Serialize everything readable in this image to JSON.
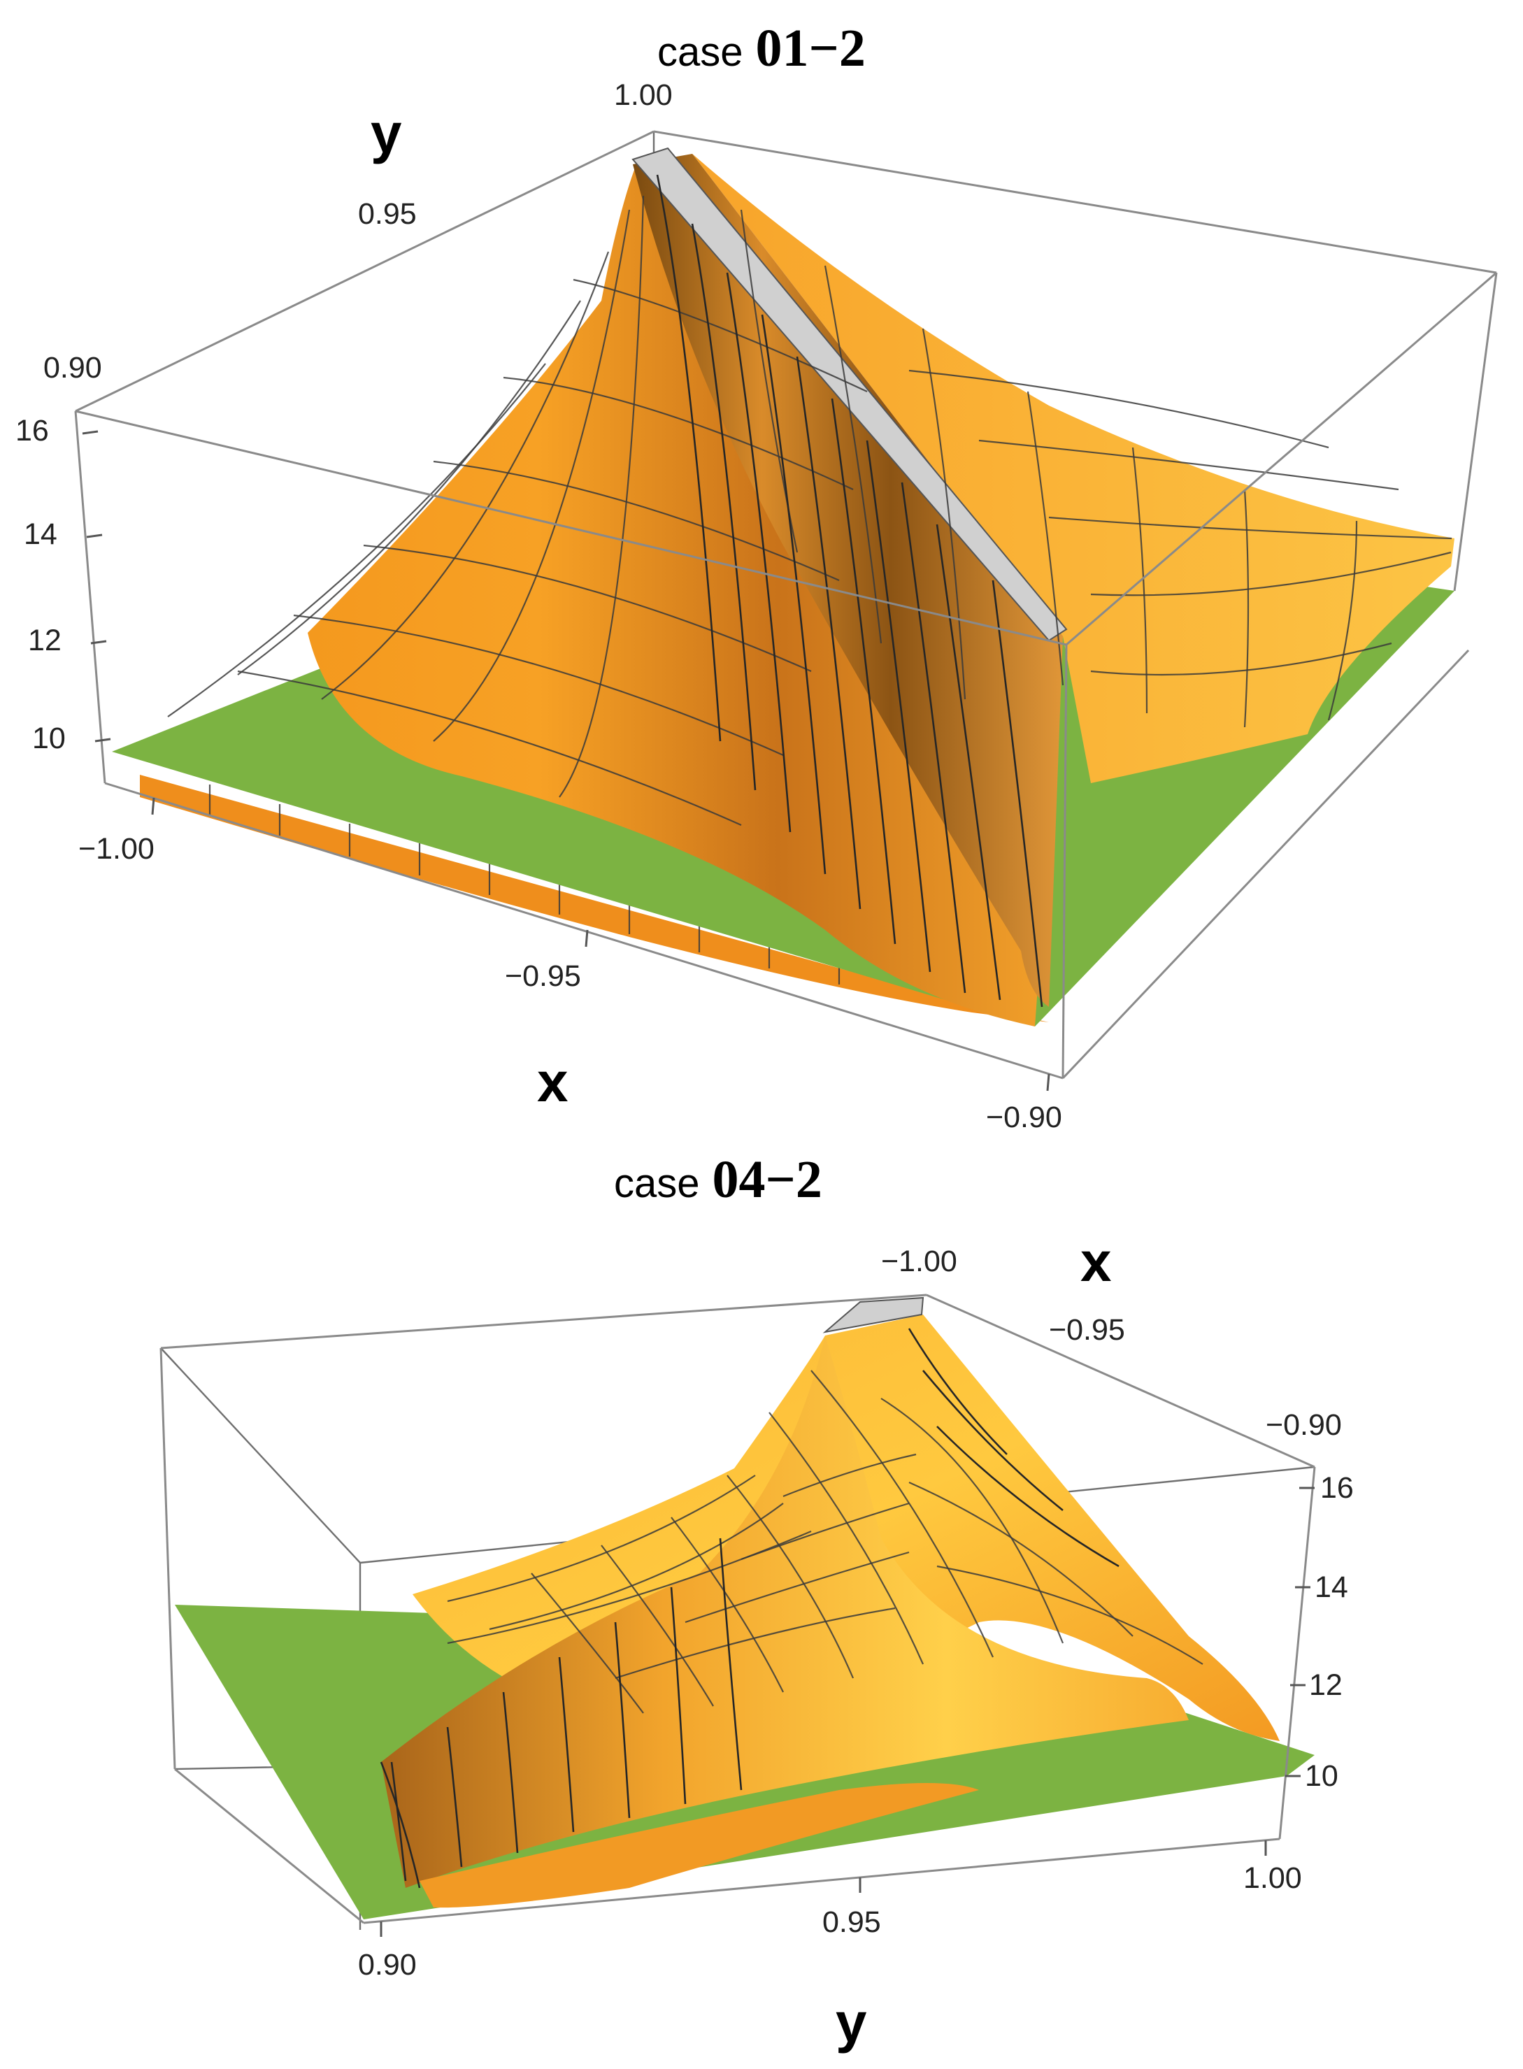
{
  "colors": {
    "surface": "#f59a1f",
    "surface_light": "#fcb83a",
    "surface_highlight": "#ffd24a",
    "surface_dark": "#b86a12",
    "plane": "#7cb342",
    "ridge_cap": "#c9c9c9"
  },
  "chart_data": [
    {
      "type": "surface3d",
      "title_prefix": "case",
      "title_id": "01−2",
      "xlabel": "x",
      "ylabel": "y",
      "zlabel": "",
      "xlim": [
        -1.0,
        -0.9
      ],
      "ylim": [
        0.9,
        1.0
      ],
      "zlim": [
        9,
        16.5
      ],
      "x_ticks": [
        "−1.00",
        "−0.95",
        "−0.90"
      ],
      "y_ticks": [
        "0.90",
        "0.95",
        "1.00"
      ],
      "z_ticks": [
        "10",
        "12",
        "14",
        "16"
      ],
      "plane_z": 9.6,
      "surface_peak_z": 16.0,
      "surface_floor_z": 8.9
    },
    {
      "type": "surface3d",
      "title_prefix": "case",
      "title_id": "04−2",
      "xlabel": "x",
      "ylabel": "y",
      "zlabel": "",
      "xlim": [
        -1.0,
        -0.9
      ],
      "ylim": [
        0.9,
        1.0
      ],
      "zlim": [
        9,
        16.5
      ],
      "x_ticks": [
        "−1.00",
        "−0.95",
        "−0.90"
      ],
      "y_ticks": [
        "0.90",
        "0.95",
        "1.00"
      ],
      "z_ticks": [
        "10",
        "12",
        "14",
        "16"
      ],
      "plane_z": 9.6,
      "surface_peak_z": 16.0,
      "surface_floor_z": 8.9
    }
  ]
}
